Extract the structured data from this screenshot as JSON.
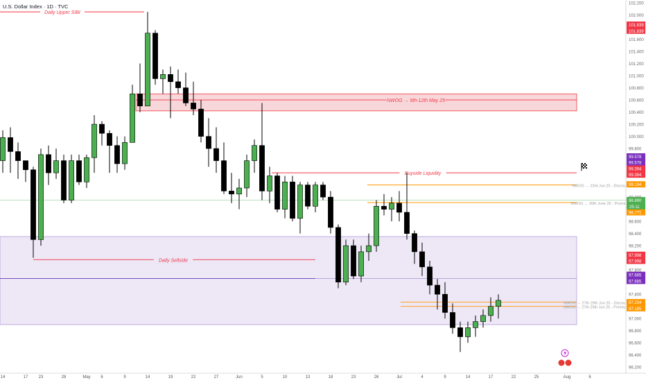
{
  "header": {
    "title": "U.S. Dollar Index · 1D · TVC"
  },
  "colors": {
    "bull": "#4caf50",
    "bear": "#000000",
    "wick": "#000000",
    "red_line": "#f23645",
    "orange_line": "#ff9800",
    "purple": "#9c27b0",
    "zone_red_fill": "#f8d7da",
    "zone_purple_fill": "#ede7f6",
    "price_tag_red": "#f23645",
    "price_tag_purple": "#7b2fbe",
    "price_tag_orange": "#ff9800",
    "price_tag_green": "#4caf50"
  },
  "chart_data": {
    "type": "candlestick",
    "title": "U.S. Dollar Index · 1D · TVC",
    "ylim": [
      96.1,
      102.2
    ],
    "y_ticks": [
      96.2,
      96.4,
      96.6,
      96.8,
      97.0,
      97.2,
      97.4,
      97.6,
      97.8,
      98.0,
      98.2,
      98.4,
      98.6,
      98.8,
      99.0,
      99.2,
      99.4,
      99.6,
      99.8,
      100.0,
      100.2,
      100.4,
      100.6,
      100.8,
      101.0,
      101.2,
      101.4,
      101.6,
      101.8,
      102.0,
      102.2
    ],
    "y_tick_labels": [
      "96.200",
      "96.400",
      "96.600",
      "96.800",
      "97.000",
      "97.200",
      "97.400",
      "97.600",
      "97.800",
      "98.000",
      "98.200",
      "98.400",
      "98.600",
      "98.800",
      "99.000",
      "99.200",
      "99.400",
      "99.600",
      "99.800",
      "100.000",
      "100.200",
      "100.400",
      "100.600",
      "100.800",
      "101.000",
      "101.200",
      "101.400",
      "101.600",
      "101.800",
      "102.000",
      "102.200"
    ],
    "x_ticks": [
      {
        "label": "14",
        "i": 0
      },
      {
        "label": "17",
        "i": 3
      },
      {
        "label": "23",
        "i": 5
      },
      {
        "label": "28",
        "i": 8
      },
      {
        "label": "May",
        "i": 11
      },
      {
        "label": "6",
        "i": 13
      },
      {
        "label": "9",
        "i": 16
      },
      {
        "label": "14",
        "i": 19
      },
      {
        "label": "19",
        "i": 22
      },
      {
        "label": "22",
        "i": 25
      },
      {
        "label": "27",
        "i": 28
      },
      {
        "label": "Jun",
        "i": 31
      },
      {
        "label": "5",
        "i": 34
      },
      {
        "label": "10",
        "i": 37
      },
      {
        "label": "13",
        "i": 40
      },
      {
        "label": "18",
        "i": 43
      },
      {
        "label": "23",
        "i": 46
      },
      {
        "label": "26",
        "i": 49
      },
      {
        "label": "Jul",
        "i": 52
      },
      {
        "label": "4",
        "i": 55
      },
      {
        "label": "9",
        "i": 58
      },
      {
        "label": "14",
        "i": 61
      },
      {
        "label": "17",
        "i": 64
      },
      {
        "label": "22",
        "i": 67
      },
      {
        "label": "25",
        "i": 70
      },
      {
        "label": "Aug",
        "i": 74
      },
      {
        "label": "6",
        "i": 77
      }
    ],
    "candles": [
      {
        "o": 99.6,
        "h": 100.1,
        "l": 99.4,
        "c": 99.98
      },
      {
        "o": 99.98,
        "h": 100.15,
        "l": 99.4,
        "c": 99.75
      },
      {
        "o": 99.75,
        "h": 99.9,
        "l": 99.3,
        "c": 99.6
      },
      {
        "o": 99.6,
        "h": 99.6,
        "l": 99.25,
        "c": 99.45
      },
      {
        "o": 99.45,
        "h": 99.5,
        "l": 98.0,
        "c": 98.3
      },
      {
        "o": 98.3,
        "h": 99.8,
        "l": 98.2,
        "c": 99.7
      },
      {
        "o": 99.7,
        "h": 99.85,
        "l": 99.2,
        "c": 99.4
      },
      {
        "o": 99.4,
        "h": 99.8,
        "l": 99.3,
        "c": 99.6
      },
      {
        "o": 99.6,
        "h": 99.7,
        "l": 98.9,
        "c": 98.95
      },
      {
        "o": 98.95,
        "h": 99.7,
        "l": 98.9,
        "c": 99.6
      },
      {
        "o": 99.6,
        "h": 99.7,
        "l": 99.2,
        "c": 99.25
      },
      {
        "o": 99.25,
        "h": 99.7,
        "l": 99.15,
        "c": 99.65
      },
      {
        "o": 99.65,
        "h": 100.35,
        "l": 99.4,
        "c": 100.2
      },
      {
        "o": 100.2,
        "h": 100.25,
        "l": 99.85,
        "c": 100.05
      },
      {
        "o": 100.05,
        "h": 100.1,
        "l": 99.4,
        "c": 99.85
      },
      {
        "o": 99.85,
        "h": 100.0,
        "l": 99.4,
        "c": 99.55
      },
      {
        "o": 99.55,
        "h": 100.0,
        "l": 99.45,
        "c": 99.9
      },
      {
        "o": 99.9,
        "h": 100.85,
        "l": 99.9,
        "c": 100.7
      },
      {
        "o": 100.7,
        "h": 101.2,
        "l": 100.4,
        "c": 100.5
      },
      {
        "o": 100.5,
        "h": 102.05,
        "l": 100.5,
        "c": 101.7
      },
      {
        "o": 101.7,
        "h": 101.75,
        "l": 100.85,
        "c": 100.95
      },
      {
        "o": 100.95,
        "h": 101.1,
        "l": 100.7,
        "c": 101.02
      },
      {
        "o": 101.02,
        "h": 101.15,
        "l": 100.3,
        "c": 100.9
      },
      {
        "o": 100.9,
        "h": 101.1,
        "l": 100.7,
        "c": 100.8
      },
      {
        "o": 100.8,
        "h": 101.05,
        "l": 100.5,
        "c": 100.55
      },
      {
        "o": 100.55,
        "h": 100.9,
        "l": 100.35,
        "c": 100.45
      },
      {
        "o": 100.45,
        "h": 100.6,
        "l": 99.9,
        "c": 100.0
      },
      {
        "o": 100.0,
        "h": 100.3,
        "l": 99.5,
        "c": 99.8
      },
      {
        "o": 99.8,
        "h": 100.15,
        "l": 99.4,
        "c": 99.6
      },
      {
        "o": 99.6,
        "h": 99.9,
        "l": 99.05,
        "c": 99.1
      },
      {
        "o": 99.1,
        "h": 99.4,
        "l": 98.9,
        "c": 99.05
      },
      {
        "o": 99.05,
        "h": 99.3,
        "l": 98.8,
        "c": 99.15
      },
      {
        "o": 99.15,
        "h": 99.7,
        "l": 99.0,
        "c": 99.6
      },
      {
        "o": 99.6,
        "h": 99.95,
        "l": 99.4,
        "c": 99.85
      },
      {
        "o": 99.85,
        "h": 100.55,
        "l": 98.95,
        "c": 99.1
      },
      {
        "o": 99.1,
        "h": 99.5,
        "l": 98.9,
        "c": 99.35
      },
      {
        "o": 99.35,
        "h": 99.4,
        "l": 98.75,
        "c": 98.8
      },
      {
        "o": 98.8,
        "h": 99.35,
        "l": 98.65,
        "c": 99.25
      },
      {
        "o": 99.25,
        "h": 99.35,
        "l": 98.6,
        "c": 98.65
      },
      {
        "o": 98.65,
        "h": 99.25,
        "l": 98.4,
        "c": 99.2
      },
      {
        "o": 99.2,
        "h": 99.25,
        "l": 98.8,
        "c": 98.85
      },
      {
        "o": 98.85,
        "h": 99.25,
        "l": 98.75,
        "c": 99.2
      },
      {
        "o": 99.2,
        "h": 99.25,
        "l": 98.95,
        "c": 99.0
      },
      {
        "o": 99.0,
        "h": 99.1,
        "l": 98.4,
        "c": 98.5
      },
      {
        "o": 98.5,
        "h": 98.55,
        "l": 97.5,
        "c": 97.6
      },
      {
        "o": 97.6,
        "h": 98.3,
        "l": 97.55,
        "c": 98.2
      },
      {
        "o": 98.2,
        "h": 98.3,
        "l": 97.65,
        "c": 97.7
      },
      {
        "o": 97.7,
        "h": 98.2,
        "l": 97.6,
        "c": 98.1
      },
      {
        "o": 98.1,
        "h": 98.4,
        "l": 97.95,
        "c": 98.2
      },
      {
        "o": 98.2,
        "h": 98.95,
        "l": 98.1,
        "c": 98.85
      },
      {
        "o": 98.85,
        "h": 99.05,
        "l": 98.7,
        "c": 98.8
      },
      {
        "o": 98.8,
        "h": 99.0,
        "l": 98.6,
        "c": 98.9
      },
      {
        "o": 98.9,
        "h": 99.1,
        "l": 98.6,
        "c": 98.75
      },
      {
        "o": 98.75,
        "h": 99.4,
        "l": 98.3,
        "c": 98.4
      },
      {
        "o": 98.4,
        "h": 98.45,
        "l": 97.9,
        "c": 98.1
      },
      {
        "o": 98.1,
        "h": 98.25,
        "l": 97.7,
        "c": 97.85
      },
      {
        "o": 97.85,
        "h": 97.95,
        "l": 97.4,
        "c": 97.55
      },
      {
        "o": 97.55,
        "h": 97.65,
        "l": 97.15,
        "c": 97.4
      },
      {
        "o": 97.4,
        "h": 97.6,
        "l": 97.0,
        "c": 97.1
      },
      {
        "o": 97.1,
        "h": 97.25,
        "l": 96.75,
        "c": 96.85
      },
      {
        "o": 96.85,
        "h": 96.95,
        "l": 96.45,
        "c": 96.7
      },
      {
        "o": 96.7,
        "h": 96.95,
        "l": 96.6,
        "c": 96.85
      },
      {
        "o": 96.85,
        "h": 97.05,
        "l": 96.7,
        "c": 96.95
      },
      {
        "o": 96.95,
        "h": 97.15,
        "l": 96.85,
        "c": 97.05
      },
      {
        "o": 97.05,
        "h": 97.35,
        "l": 96.95,
        "c": 97.2
      },
      {
        "o": 97.2,
        "h": 97.4,
        "l": 97.0,
        "c": 97.3
      }
    ],
    "annotations": [
      {
        "label": "Daily Upper SIBI",
        "price": 102.05,
        "style": "red"
      },
      {
        "label": "NWOG → 9th-12th May 25",
        "price": 100.6,
        "style": "red-zone"
      },
      {
        "label": "Buyside Liquidity",
        "price": 99.4,
        "style": "red"
      },
      {
        "label": "NWOG → 23rd Jun 25 - Discount",
        "price": 99.2,
        "style": "orange"
      },
      {
        "label": "NWOG → 30th June 25 - Premium",
        "price": 98.91,
        "style": "orange"
      },
      {
        "label": "Daily Sellside",
        "price": 97.97,
        "style": "red"
      },
      {
        "label": "NWOG → 27th 29th Jun 25 - Discount",
        "price": 97.27,
        "style": "orange"
      },
      {
        "label": "NWOG → 27th 29th Jun 25 - Premium",
        "price": 97.2,
        "style": "orange"
      }
    ],
    "price_tags": [
      {
        "label": "101.839",
        "price": 101.84,
        "color": "red"
      },
      {
        "label": "101.839",
        "price": 101.74,
        "color": "red"
      },
      {
        "label": "99.578",
        "price": 99.67,
        "color": "purple"
      },
      {
        "label": "99.578",
        "price": 99.57,
        "color": "purple"
      },
      {
        "label": "99.394",
        "price": 99.47,
        "color": "red"
      },
      {
        "label": "99.394",
        "price": 99.37,
        "color": "red"
      },
      {
        "label": "99.194",
        "price": 99.21,
        "color": "orange"
      },
      {
        "label": "98.890",
        "price": 98.95,
        "color": "green"
      },
      {
        "label": "98.771",
        "price": 98.75,
        "color": "orange"
      },
      {
        "label": "97.998",
        "price": 98.05,
        "color": "red"
      },
      {
        "label": "97.998",
        "price": 97.95,
        "color": "red"
      },
      {
        "label": "97.685",
        "price": 97.72,
        "color": "purple"
      },
      {
        "label": "97.685",
        "price": 97.62,
        "color": "purple"
      },
      {
        "label": "97.254",
        "price": 97.27,
        "color": "orange"
      },
      {
        "label": "97.185",
        "price": 97.17,
        "color": "orange"
      }
    ]
  },
  "extra_price_text": "25:11"
}
